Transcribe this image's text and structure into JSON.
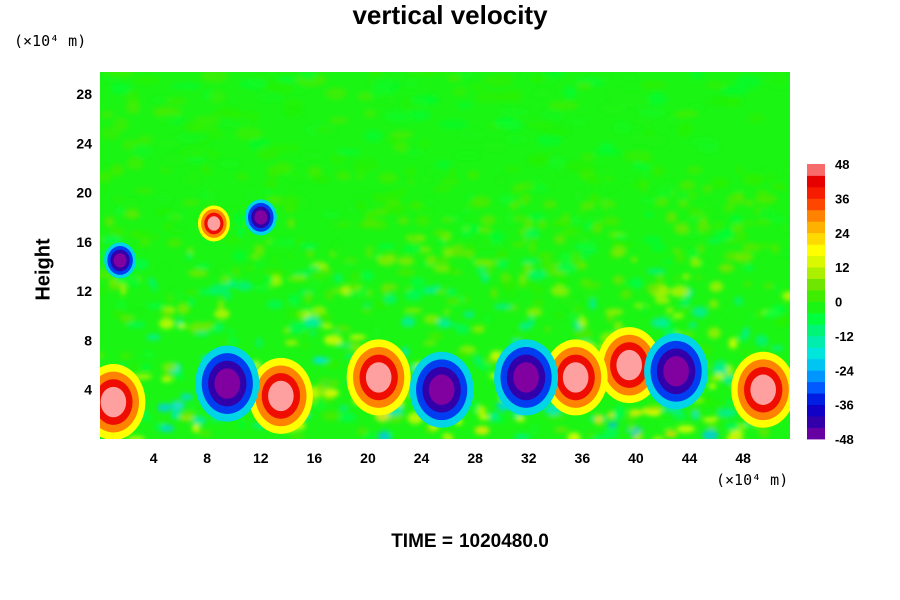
{
  "chart_data": {
    "type": "heatmap",
    "title": "vertical velocity",
    "xlabel": "",
    "ylabel": "Height",
    "x_unit": "(×10⁴ m)",
    "y_unit": "(×10⁴ m)",
    "xlim": [
      0,
      51.5
    ],
    "ylim": [
      0,
      29.8
    ],
    "x_ticks": [
      4,
      8,
      12,
      16,
      20,
      24,
      28,
      32,
      36,
      40,
      44,
      48
    ],
    "y_ticks": [
      4,
      8,
      12,
      16,
      20,
      24,
      28
    ],
    "colorbar": {
      "min": -48,
      "max": 48,
      "step": 4,
      "tick_labels": [
        -48,
        -36,
        -24,
        -12,
        0,
        12,
        24,
        36,
        48
      ]
    },
    "footer": {
      "label": "TIME =",
      "value": "1020480.0"
    },
    "updrafts": [
      {
        "x": 1.0,
        "y": 3.0
      },
      {
        "x": 13.5,
        "y": 3.5
      },
      {
        "x": 20.8,
        "y": 5.0
      },
      {
        "x": 39.5,
        "y": 6.0
      },
      {
        "x": 49.5,
        "y": 4.0
      },
      {
        "x": 8.5,
        "y": 17.5
      },
      {
        "x": 35.5,
        "y": 5.0
      }
    ],
    "downdrafts": [
      {
        "x": 9.5,
        "y": 4.5
      },
      {
        "x": 25.5,
        "y": 4.0
      },
      {
        "x": 31.8,
        "y": 5.0
      },
      {
        "x": 43.0,
        "y": 5.5
      },
      {
        "x": 1.5,
        "y": 14.5
      },
      {
        "x": 12.0,
        "y": 18.0
      }
    ]
  }
}
